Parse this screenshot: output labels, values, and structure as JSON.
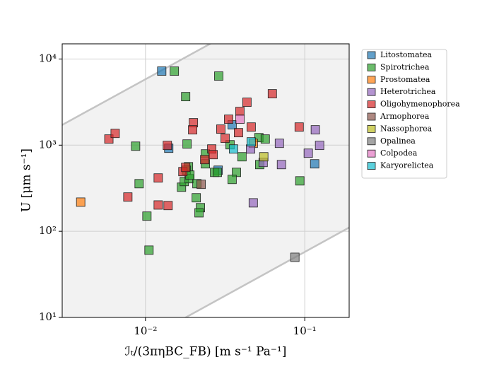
{
  "chart_data": {
    "type": "scatter",
    "xlabel": "ℐₜ/(3πηBC_FB) [m s⁻¹ Pa⁻¹]",
    "ylabel": "U [μm s⁻¹]",
    "xscale": "log",
    "yscale": "log",
    "grid": true,
    "legend": "outside right",
    "xlim": [
      0.003,
      0.19
    ],
    "ylim": [
      10,
      15000
    ],
    "xticks": [
      {
        "value": 0.01,
        "label": "10⁻²"
      },
      {
        "value": 0.1,
        "label": "10⁻¹"
      }
    ],
    "yticks": [
      {
        "value": 10,
        "label": "10¹"
      },
      {
        "value": 100,
        "label": "10²"
      },
      {
        "value": 1000,
        "label": "10³"
      },
      {
        "value": 10000,
        "label": "10⁴"
      }
    ],
    "series": [
      {
        "name": "Litostomatea",
        "color": "#1f77b4",
        "x": [
          0.01265,
          0.014,
          0.035,
          0.1154,
          0.0286
        ],
        "values": [
          7240,
          920,
          1720,
          607,
          512
        ]
      },
      {
        "name": "Spirotrichea",
        "color": "#2ca02c",
        "x": [
          0.01518,
          0.02884,
          0.01788,
          0.00867,
          0.01824,
          0.00912,
          0.01021,
          0.01052,
          0.01862,
          0.01806,
          0.01683,
          0.01751,
          0.0188,
          0.019,
          0.02103,
          0.02083,
          0.02213,
          0.02168,
          0.02377,
          0.02716,
          0.02826,
          0.03396,
          0.03724,
          0.035,
          0.04036,
          0.05152,
          0.05649,
          0.05212,
          0.09312,
          0.02377
        ],
        "values": [
          7230,
          6340,
          3660,
          973,
          1031,
          357,
          150,
          60.4,
          562,
          512,
          325,
          378,
          408,
          449,
          357,
          245,
          188,
          164,
          607,
          483,
          483,
          1011,
          483,
          400,
          733,
          1222,
          1178,
          595,
          385,
          791
        ]
      },
      {
        "name": "Prostomatea",
        "color": "#ff7f0e",
        "x": [
          0.00392,
          0.04753
        ],
        "values": [
          218,
          1050
        ]
      },
      {
        "name": "Heterotrichea",
        "color": "#9467bd",
        "x": [
          0.1165,
          0.1239,
          0.1052,
          0.0693,
          0.0714,
          0.0475,
          0.0548,
          0.0457
        ],
        "values": [
          1506,
          993,
          806,
          1050,
          595,
          214,
          630,
          903
        ]
      },
      {
        "name": "Oligohymenophorea",
        "color": "#d62728",
        "x": [
          0.00589,
          0.00645,
          0.00775,
          0.01202,
          0.01202,
          0.01386,
          0.01372,
          0.02,
          0.01978,
          0.01717,
          0.01788,
          0.02354,
          0.02606,
          0.0266,
          0.02972,
          0.03327,
          0.03162,
          0.03838,
          0.04335,
          0.03917,
          0.0461,
          0.06258,
          0.09225
        ],
        "values": [
          1178,
          1368,
          250,
          416,
          202,
          199,
          993,
          1820,
          1506,
          493,
          552,
          680,
          903,
          776,
          1535,
          2000,
          1200,
          1396,
          3147,
          2460,
          1623,
          3950,
          1623
        ]
      },
      {
        "name": "Armophorea",
        "color": "#8c564b",
        "x": [
          0.02237
        ],
        "values": [
          351
        ]
      },
      {
        "name": "Nassophorea",
        "color": "#bcbd22",
        "x": [
          0.0553
        ],
        "values": [
          733
        ]
      },
      {
        "name": "Opalinea",
        "color": "#7f7f7f",
        "x": [
          0.0867
        ],
        "values": [
          49.9
        ]
      },
      {
        "name": "Colpodea",
        "color": "#e377c2",
        "x": [
          0.0392
        ],
        "values": [
          2000
        ]
      },
      {
        "name": "Karyorelictea",
        "color": "#17becf",
        "x": [
          0.0357,
          0.0461
        ],
        "values": [
          903,
          1091
        ]
      }
    ]
  }
}
